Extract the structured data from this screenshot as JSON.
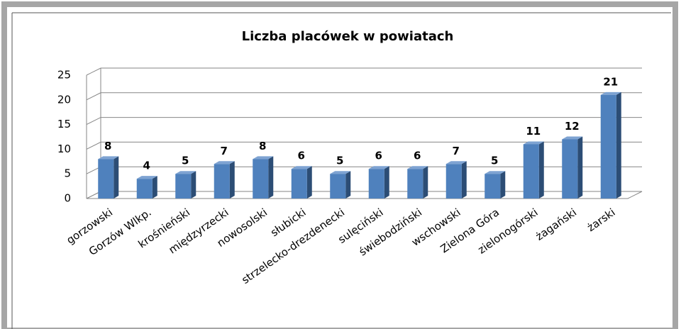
{
  "chart_data": {
    "type": "bar",
    "title": "Liczba placówek w powiatach",
    "categories": [
      "gorzowski",
      "Gorzów Wlkp.",
      "krośnieński",
      "międzyrzecki",
      "nowosolski",
      "słubicki",
      "strzelecko-drezdenecki",
      "sulęciński",
      "świebodziński",
      "wschowski",
      "Zielona Góra",
      "zielonogórski",
      "żagański",
      "żarski"
    ],
    "values": [
      8,
      4,
      5,
      7,
      8,
      6,
      5,
      6,
      6,
      7,
      5,
      11,
      12,
      21
    ],
    "color": "#4f81bd",
    "ylim": [
      0,
      25
    ],
    "yticks": [
      0,
      5,
      10,
      15,
      20,
      25
    ],
    "grid": true
  }
}
